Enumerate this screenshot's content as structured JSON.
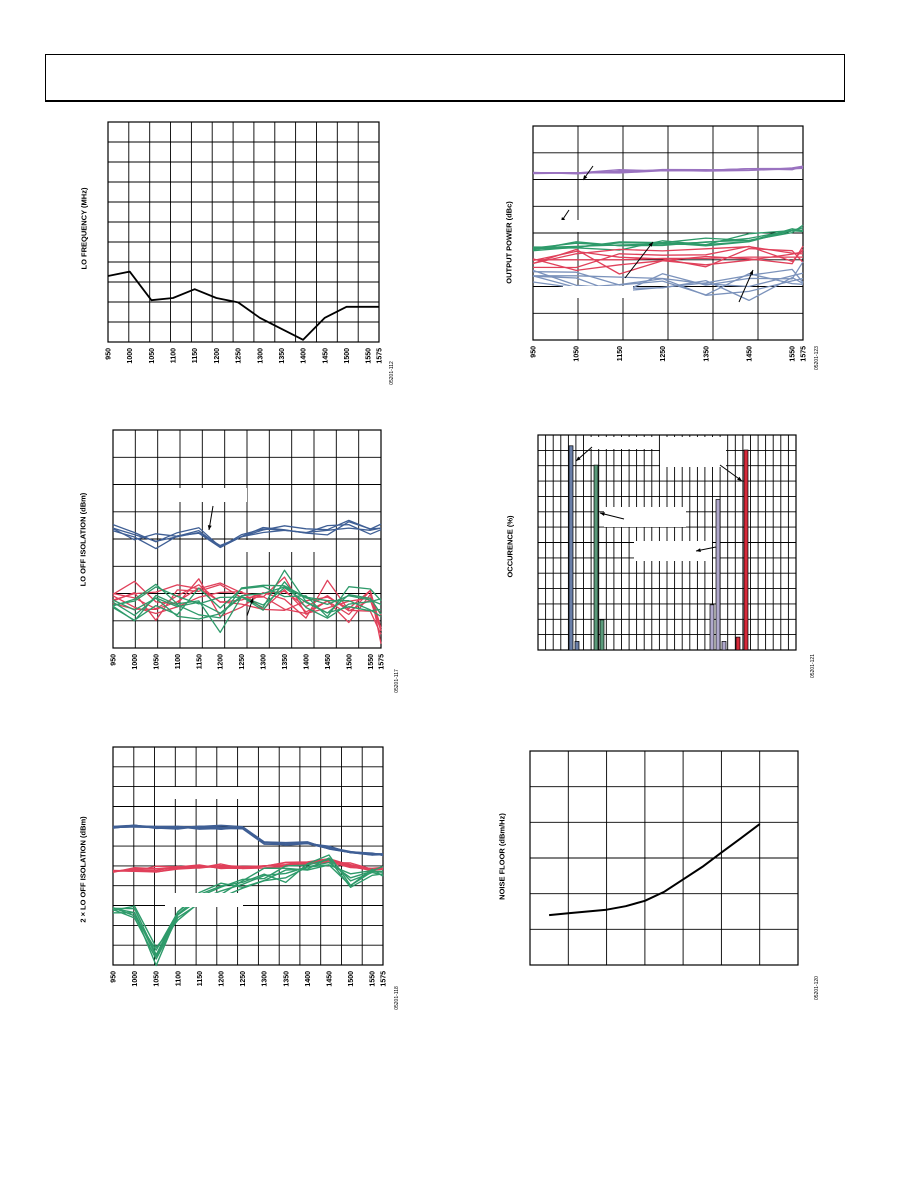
{
  "colors": {
    "grid": "#000000",
    "black": "#000000",
    "blue": "#3f5f95",
    "red": "#e0405a",
    "green": "#2e9a6a",
    "purple": "#9a73c0",
    "lightblue": "#7b92bb",
    "brightred": "#ee1c1c",
    "bar_blue": "#6a7fa8",
    "bar_green": "#5a9a7a",
    "bar_lavender": "#b0a8cc",
    "bar_red": "#d62a3a"
  },
  "charts": {
    "lo_freq": {
      "ylabel": "LO FREQUENCY (MHz)",
      "fig_id": "05201-112"
    },
    "output_power": {
      "ylabel": "OUTPUT POWER (dBc)",
      "fig_id": "05201-123"
    },
    "lo_off": {
      "ylabel": "LO OFF ISOLATION (dBm)",
      "fig_id": "05201-117"
    },
    "occurence": {
      "ylabel": "OCCURENCE (%)",
      "fig_id": "05201-121"
    },
    "lo2x": {
      "ylabel": "2 × LO OFF ISOLATION (dBm)",
      "fig_id": "05201-118"
    },
    "noise": {
      "ylabel": "NOISE FLOOR (dBm/Hz)",
      "fig_id": "05201-120"
    }
  },
  "chart_data": [
    {
      "id": "lo_freq",
      "type": "line",
      "ylabel": "LO FREQUENCY (MHz)",
      "x": [
        950,
        1000,
        1050,
        1100,
        1150,
        1200,
        1250,
        1300,
        1350,
        1400,
        1450,
        1500,
        1550,
        1575
      ],
      "xticks": [
        "950",
        "1000",
        "1050",
        "1100",
        "1150",
        "1200",
        "1250",
        "1300",
        "1350",
        "1400",
        "1450",
        "1500",
        "1550",
        "1575"
      ],
      "ylim": [
        0,
        10
      ],
      "grid": true,
      "series": [
        {
          "values": [
            3.0,
            3.2,
            1.9,
            2.0,
            2.4,
            2.0,
            1.8,
            1.1,
            0.6,
            0.1,
            1.1,
            1.6,
            1.6,
            1.6
          ]
        }
      ]
    },
    {
      "id": "output_power",
      "type": "line",
      "ylabel": "OUTPUT POWER (dBc)",
      "x": [
        950,
        1050,
        1150,
        1250,
        1350,
        1450,
        1550,
        1575
      ],
      "xticks": [
        "950",
        "1050",
        "1150",
        "1250",
        "1350",
        "1450",
        "1550",
        "1575"
      ],
      "ylim": [
        0,
        8
      ],
      "grid": true,
      "series": [
        {
          "color": "purple",
          "values": [
            6.25,
            6.25,
            6.3,
            6.35,
            6.35,
            6.4,
            6.4,
            6.45
          ]
        },
        {
          "color": "green",
          "values": [
            3.45,
            3.5,
            3.55,
            3.6,
            3.65,
            3.8,
            4.1,
            4.2
          ]
        },
        {
          "color": "red",
          "values": [
            3.0,
            3.0,
            3.0,
            3.05,
            3.05,
            3.1,
            3.1,
            3.1
          ]
        },
        {
          "color": "lightblue",
          "values": [
            2.4,
            2.4,
            2.35,
            2.3,
            2.1,
            2.0,
            2.4,
            2.5
          ]
        }
      ]
    },
    {
      "id": "lo_off",
      "type": "line",
      "ylabel": "LO OFF ISOLATION (dBm)",
      "x": [
        950,
        1000,
        1050,
        1100,
        1150,
        1200,
        1250,
        1300,
        1350,
        1400,
        1450,
        1500,
        1550,
        1575
      ],
      "xticks": [
        "950",
        "1000",
        "1050",
        "1100",
        "1150",
        "1200",
        "1250",
        "1300",
        "1350",
        "1400",
        "1450",
        "1500",
        "1550",
        "1575"
      ],
      "ylim": [
        0,
        10
      ],
      "grid": true,
      "series": [
        {
          "color": "blue",
          "values": [
            5.5,
            5.2,
            4.9,
            5.1,
            5.3,
            4.7,
            5.1,
            5.3,
            5.4,
            5.3,
            5.4,
            5.5,
            5.4,
            5.5
          ]
        },
        {
          "color": "red",
          "values": [
            2.5,
            2.3,
            1.8,
            2.4,
            2.9,
            2.1,
            2.2,
            2.5,
            2.6,
            1.9,
            2.4,
            1.7,
            2.2,
            0.8
          ]
        },
        {
          "color": "green",
          "values": [
            2.1,
            1.5,
            2.3,
            1.9,
            2.1,
            1.6,
            2.4,
            2.5,
            2.8,
            2.3,
            2.0,
            2.4,
            2.2,
            2.0
          ]
        }
      ]
    },
    {
      "id": "occurence",
      "type": "bar",
      "ylabel": "OCCURENCE (%)",
      "ylim": [
        0,
        100
      ],
      "grid": true,
      "series": [
        {
          "color": "bar_blue",
          "values": [
            95,
            4
          ]
        },
        {
          "color": "bar_green",
          "values": [
            86,
            14
          ]
        },
        {
          "color": "bar_lavender",
          "values": [
            21,
            70,
            4
          ]
        },
        {
          "color": "bar_red",
          "values": [
            6,
            93
          ]
        }
      ]
    },
    {
      "id": "lo2x",
      "type": "line",
      "ylabel": "2 × LO OFF ISOLATION (dBm)",
      "x": [
        950,
        1000,
        1050,
        1100,
        1150,
        1200,
        1250,
        1300,
        1350,
        1400,
        1450,
        1500,
        1550,
        1575
      ],
      "xticks": [
        "950",
        "1000",
        "1050",
        "1100",
        "1150",
        "1200",
        "1250",
        "1300",
        "1350",
        "1400",
        "1450",
        "1500",
        "1550",
        "1575"
      ],
      "ylim": [
        0,
        10
      ],
      "grid": true,
      "series": [
        {
          "color": "blue",
          "values": [
            6.3,
            6.35,
            6.35,
            6.3,
            6.3,
            6.3,
            6.3,
            5.6,
            5.6,
            5.6,
            5.4,
            5.2,
            5.1,
            5.1
          ]
        },
        {
          "color": "red",
          "values": [
            4.3,
            4.4,
            4.4,
            4.45,
            4.5,
            4.5,
            4.5,
            4.55,
            4.6,
            4.7,
            4.8,
            4.6,
            4.4,
            4.4
          ]
        },
        {
          "color": "green",
          "values": [
            2.6,
            2.4,
            0.4,
            2.3,
            3.0,
            3.4,
            3.7,
            4.1,
            4.2,
            4.5,
            4.7,
            4.0,
            4.3,
            4.3
          ]
        }
      ]
    },
    {
      "id": "noise",
      "type": "line",
      "ylabel": "NOISE FLOOR (dBm/Hz)",
      "ylim": [
        0,
        6
      ],
      "grid": true,
      "series": [
        {
          "color": "black",
          "x": [
            0.5,
            1.0,
            1.5,
            2.0,
            2.5,
            3.0,
            3.5,
            4.0,
            4.5,
            5.0,
            5.5,
            6.0
          ],
          "values": [
            1.4,
            1.45,
            1.5,
            1.55,
            1.65,
            1.8,
            2.05,
            2.4,
            2.75,
            3.15,
            3.55,
            3.95
          ]
        }
      ]
    }
  ]
}
